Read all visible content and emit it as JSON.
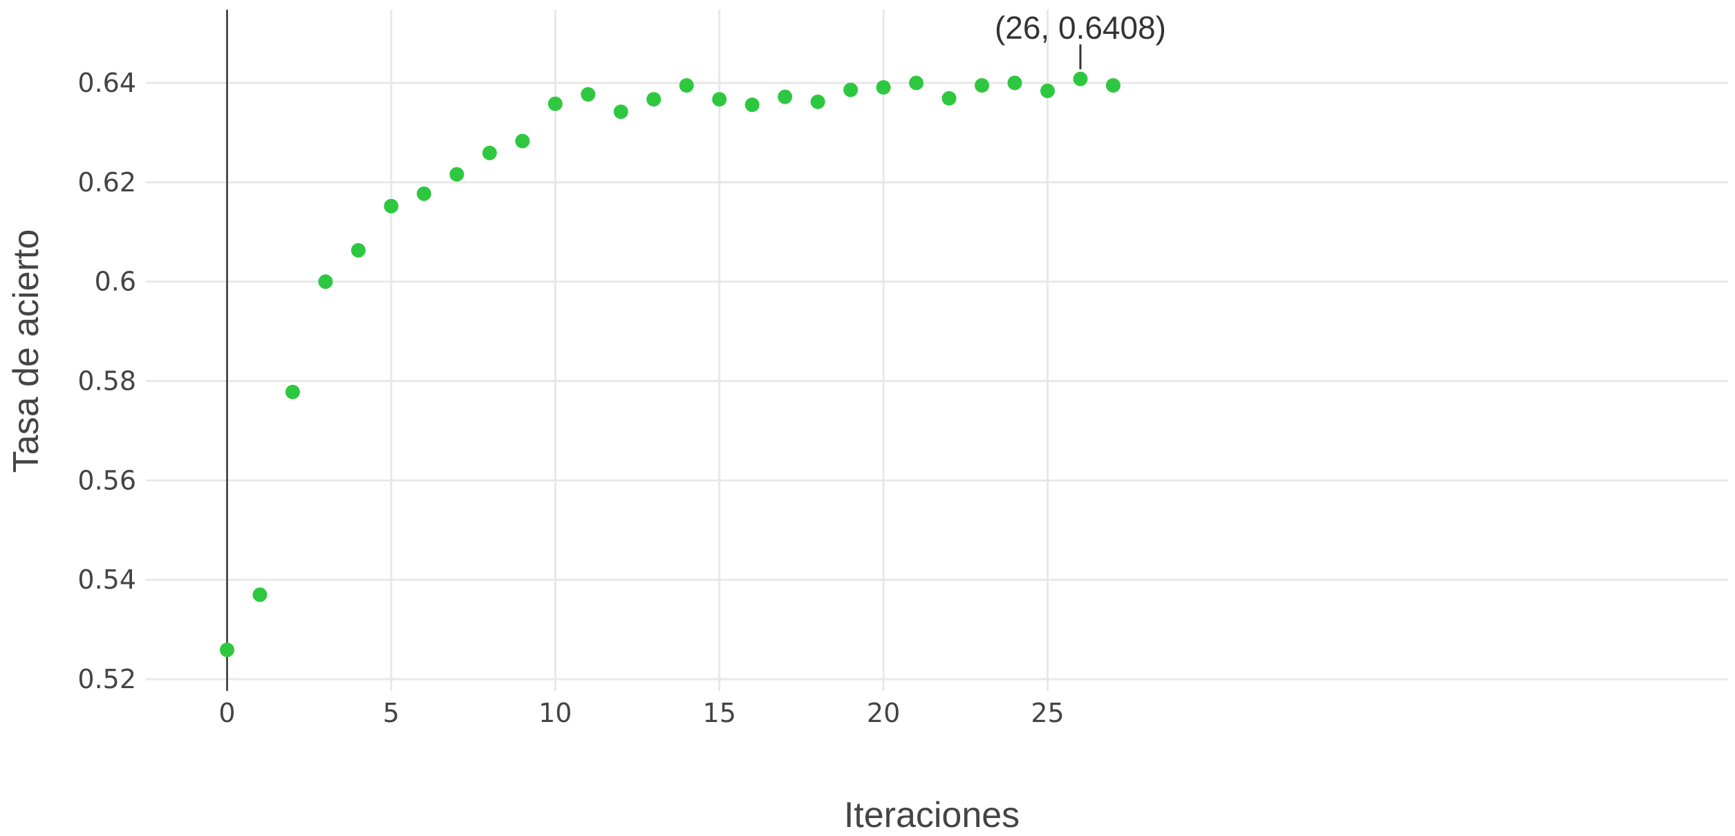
{
  "chart_data": {
    "type": "scatter",
    "title": "",
    "xlabel": "Iteraciones",
    "ylabel": "Tasa de acierto",
    "xlim": [
      -2.5,
      28.7
    ],
    "ylim": [
      0.516,
      0.655
    ],
    "x_ticks": [
      0,
      5,
      10,
      15,
      20,
      25
    ],
    "x_tick_labels": [
      "0",
      "5",
      "10",
      "15",
      "20",
      "25"
    ],
    "y_ticks": [
      0.52,
      0.54,
      0.56,
      0.58,
      0.6,
      0.62,
      0.64
    ],
    "y_tick_labels": [
      "0.52",
      "0.54",
      "0.56",
      "0.58",
      "0.6",
      "0.62",
      "0.64"
    ],
    "grid": true,
    "legend": "none",
    "marker_color": "#2ec840",
    "vertical_line_x": 0,
    "series": [
      {
        "x": [
          0,
          1,
          2,
          3,
          4,
          5,
          6,
          7,
          8,
          9,
          10,
          11,
          12,
          13,
          14,
          15,
          16,
          17,
          18,
          19,
          20,
          21,
          22,
          23,
          24,
          25,
          26,
          27
        ],
        "y": [
          0.5259,
          0.537,
          0.5778,
          0.6,
          0.6063,
          0.6152,
          0.6177,
          0.6216,
          0.6259,
          0.6283,
          0.6358,
          0.6377,
          0.6342,
          0.6367,
          0.6395,
          0.6367,
          0.6356,
          0.6372,
          0.6362,
          0.6386,
          0.6391,
          0.64,
          0.6369,
          0.6395,
          0.64,
          0.6384,
          0.6408,
          0.6395
        ]
      }
    ],
    "annotation": {
      "text": "(26, 0.6408)",
      "x": 26,
      "y": 0.6408
    }
  }
}
